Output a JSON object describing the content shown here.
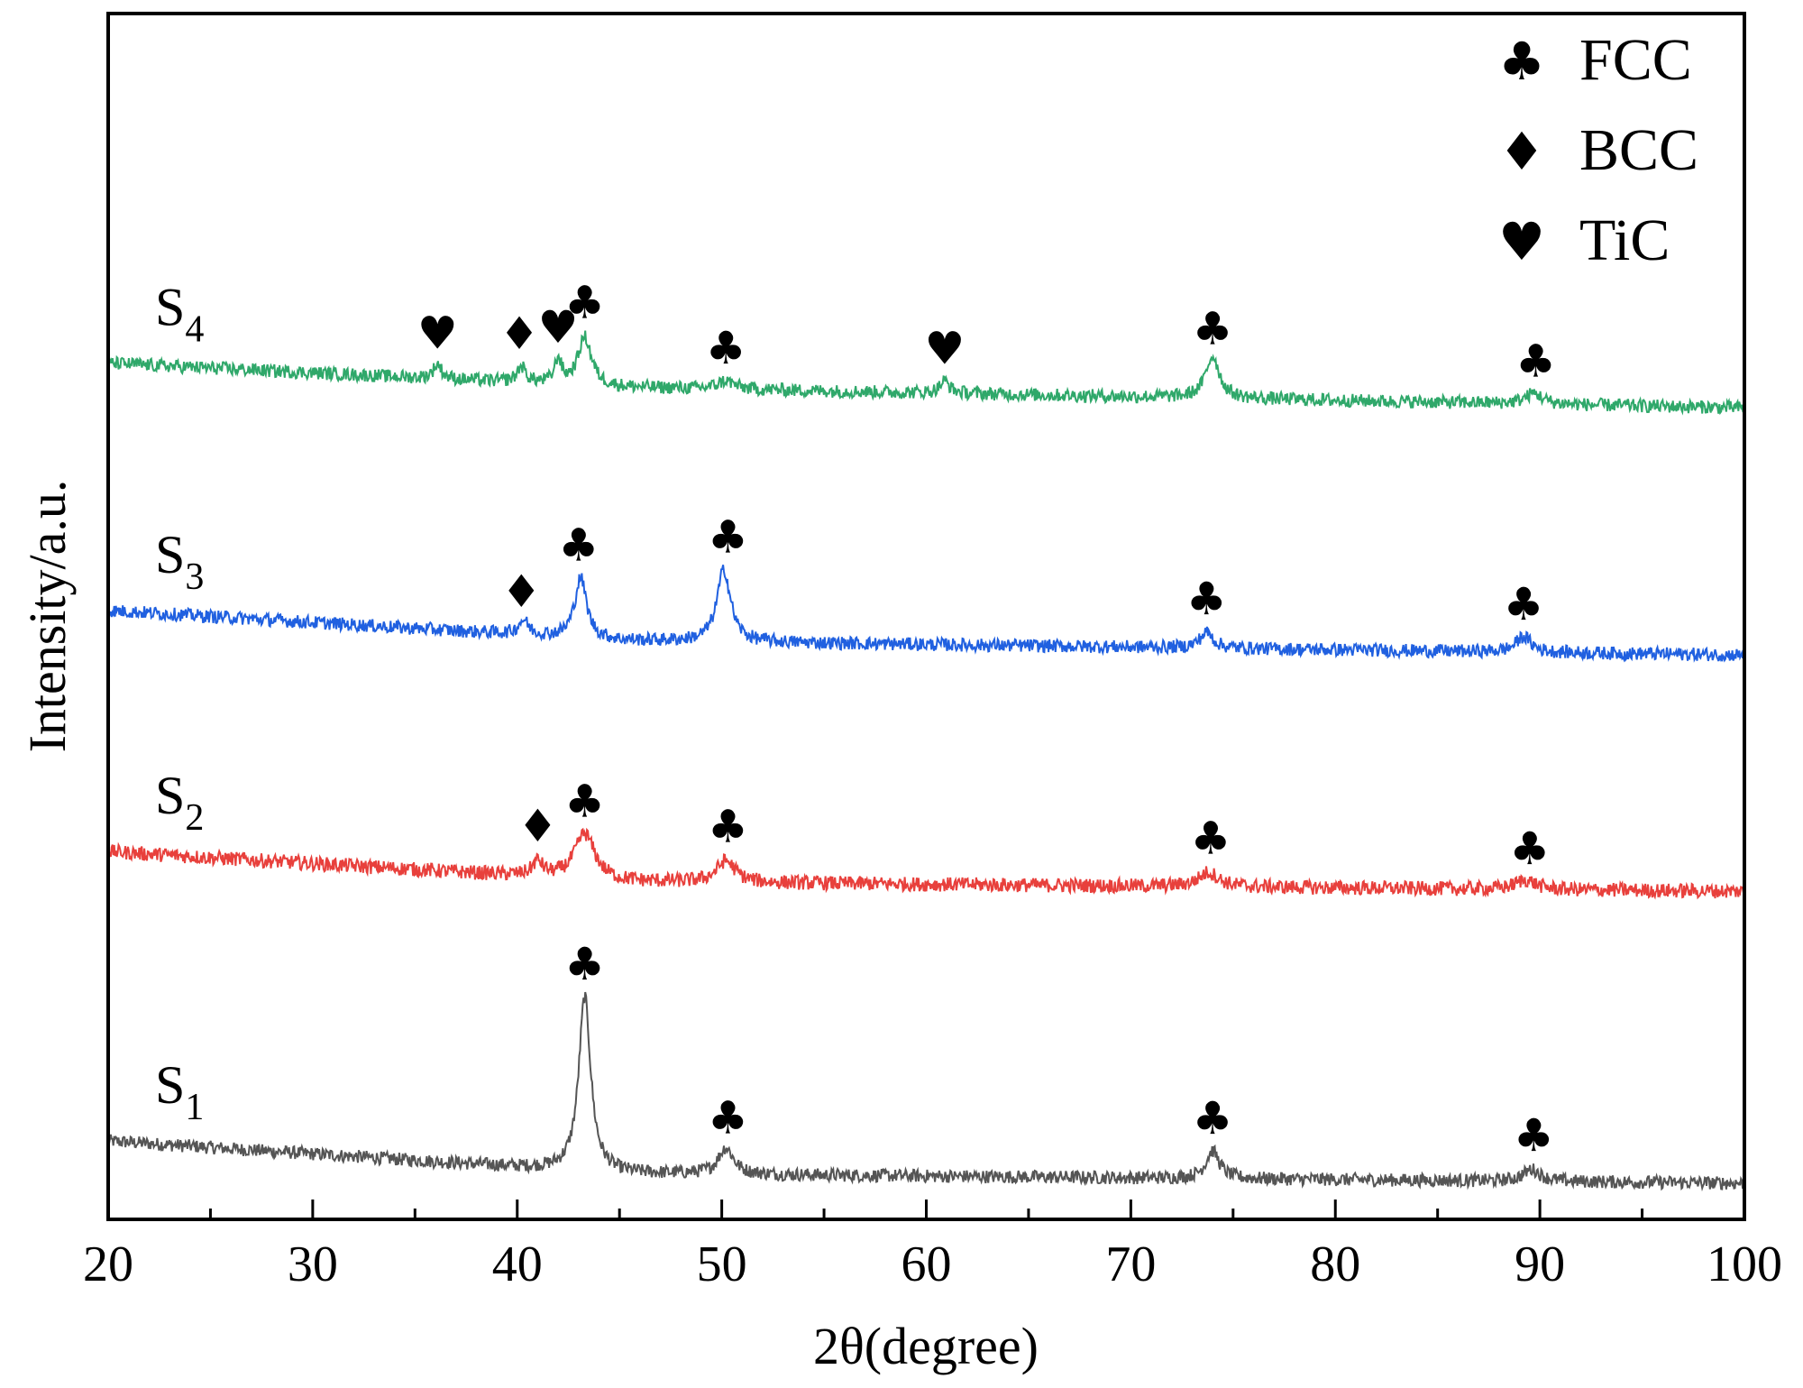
{
  "chart_data": {
    "type": "line",
    "title": "",
    "xlabel": "2θ(degree)",
    "ylabel": "Intensity/a.u.",
    "xlim": [
      20,
      100
    ],
    "ylim": [
      0,
      100
    ],
    "x_ticks": [
      20,
      30,
      40,
      50,
      60,
      70,
      80,
      90,
      100
    ],
    "x_tick_labels": [
      "20",
      "30",
      "40",
      "50",
      "60",
      "70",
      "80",
      "90",
      "100"
    ],
    "y_ticks_shown": false,
    "grid": false,
    "legend": {
      "placement": "top-right",
      "entries": [
        {
          "symbol": "♣",
          "label": "FCC"
        },
        {
          "symbol": "♦",
          "label": "BCC"
        },
        {
          "symbol": "♥",
          "label": "TiC"
        }
      ]
    },
    "series": [
      {
        "label_main": "S",
        "label_sub": "1",
        "color": "#555555",
        "baseline": [
          [
            20,
            6.5
          ],
          [
            45,
            3.8
          ],
          [
            100,
            3.0
          ]
        ],
        "noise": 0.55,
        "peaks": [
          {
            "x": 43.3,
            "height": 14.5,
            "width": 0.35
          },
          {
            "x": 50.2,
            "height": 2.2,
            "width": 0.45
          },
          {
            "x": 74.0,
            "height": 2.3,
            "width": 0.4
          },
          {
            "x": 89.6,
            "height": 1.0,
            "width": 0.5
          }
        ],
        "markers": [
          {
            "symbol": "♣",
            "x": 43.3
          },
          {
            "symbol": "♣",
            "x": 50.3
          },
          {
            "symbol": "♣",
            "x": 74.0
          },
          {
            "symbol": "♣",
            "x": 89.7
          }
        ]
      },
      {
        "label_main": "S",
        "label_sub": "2",
        "color": "#e8403c",
        "baseline": [
          [
            20,
            30.5
          ],
          [
            45,
            28.0
          ],
          [
            100,
            27.2
          ]
        ],
        "noise": 0.6,
        "peaks": [
          {
            "x": 43.3,
            "height": 3.8,
            "width": 0.6
          },
          {
            "x": 41.0,
            "height": 1.2,
            "width": 0.3
          },
          {
            "x": 50.2,
            "height": 1.8,
            "width": 0.55
          },
          {
            "x": 73.8,
            "height": 1.2,
            "width": 0.6
          },
          {
            "x": 89.3,
            "height": 0.8,
            "width": 0.6
          }
        ],
        "markers": [
          {
            "symbol": "♦",
            "x": 41.0
          },
          {
            "symbol": "♣",
            "x": 43.3
          },
          {
            "symbol": "♣",
            "x": 50.3
          },
          {
            "symbol": "♣",
            "x": 73.9
          },
          {
            "symbol": "♣",
            "x": 89.5
          }
        ]
      },
      {
        "label_main": "S",
        "label_sub": "3",
        "color": "#2060e0",
        "baseline": [
          [
            20,
            50.5
          ],
          [
            45,
            48.0
          ],
          [
            100,
            46.8
          ]
        ],
        "noise": 0.55,
        "peaks": [
          {
            "x": 43.1,
            "height": 5.0,
            "width": 0.35
          },
          {
            "x": 40.3,
            "height": 1.2,
            "width": 0.3
          },
          {
            "x": 50.1,
            "height": 6.0,
            "width": 0.4
          },
          {
            "x": 73.7,
            "height": 1.3,
            "width": 0.4
          },
          {
            "x": 89.2,
            "height": 1.3,
            "width": 0.45
          }
        ],
        "markers": [
          {
            "symbol": "♦",
            "x": 40.2
          },
          {
            "symbol": "♣",
            "x": 43.0
          },
          {
            "symbol": "♣",
            "x": 50.3
          },
          {
            "symbol": "♣",
            "x": 73.7
          },
          {
            "symbol": "♣",
            "x": 89.2
          }
        ]
      },
      {
        "label_main": "S",
        "label_sub": "4",
        "color": "#2fa86a",
        "baseline": [
          [
            20,
            71.0
          ],
          [
            45,
            69.0
          ],
          [
            100,
            67.3
          ]
        ],
        "noise": 0.55,
        "peaks": [
          {
            "x": 43.3,
            "height": 4.0,
            "width": 0.4
          },
          {
            "x": 42.0,
            "height": 2.0,
            "width": 0.2
          },
          {
            "x": 40.2,
            "height": 1.3,
            "width": 0.25
          },
          {
            "x": 36.1,
            "height": 1.2,
            "width": 0.25
          },
          {
            "x": 50.2,
            "height": 0.7,
            "width": 0.5
          },
          {
            "x": 60.9,
            "height": 1.0,
            "width": 0.3
          },
          {
            "x": 74.0,
            "height": 3.5,
            "width": 0.4
          },
          {
            "x": 89.7,
            "height": 0.9,
            "width": 0.5
          }
        ],
        "markers": [
          {
            "symbol": "♥",
            "x": 36.1
          },
          {
            "symbol": "♦",
            "x": 40.1
          },
          {
            "symbol": "♥",
            "x": 42.0
          },
          {
            "symbol": "♣",
            "x": 43.3
          },
          {
            "symbol": "♣",
            "x": 50.2
          },
          {
            "symbol": "♥",
            "x": 60.9
          },
          {
            "symbol": "♣",
            "x": 74.0
          },
          {
            "symbol": "♣",
            "x": 89.8
          }
        ]
      }
    ]
  }
}
